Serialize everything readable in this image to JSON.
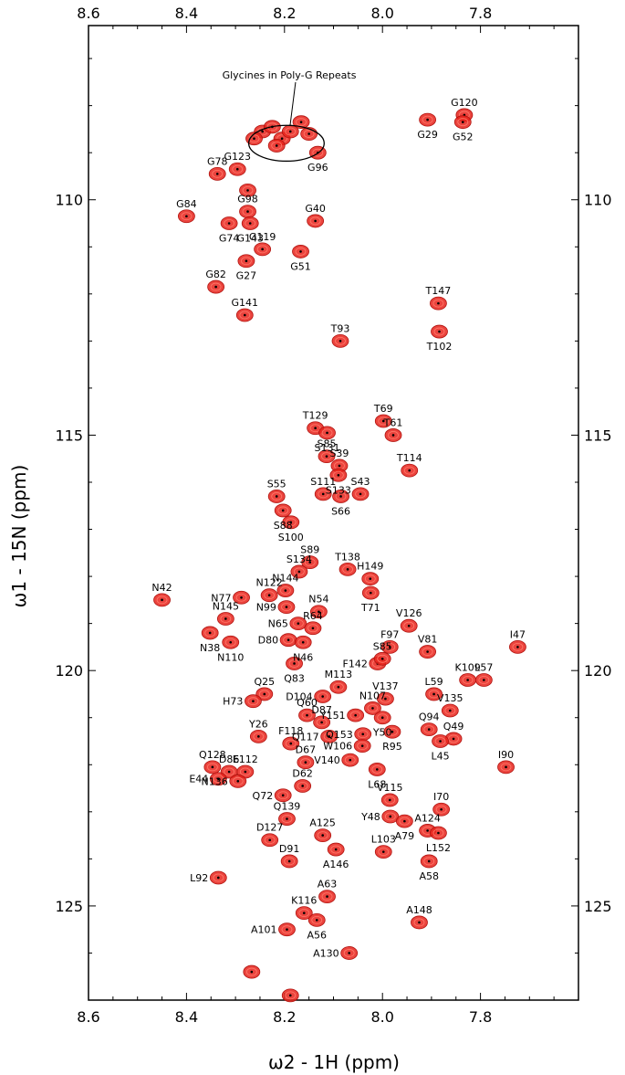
{
  "chart_data": {
    "type": "scatter",
    "xlabel": "ω2 - 1H (ppm)",
    "ylabel": "ω1 - 15N (ppm)",
    "xlim": [
      8.6,
      7.6
    ],
    "ylim": [
      106.3,
      127.0
    ],
    "x_reversed": true,
    "y_reversed": true,
    "x_ticks": [
      8.6,
      8.4,
      8.2,
      8.0,
      7.8
    ],
    "x_tick_labels": [
      "8.6",
      "8.4",
      "8.2",
      "8.0",
      "7.8"
    ],
    "y_ticks": [
      110,
      115,
      120,
      125
    ],
    "y_tick_labels": [
      "110",
      "115",
      "120",
      "125"
    ],
    "peak_color": "#e8231c",
    "annotation": {
      "text": "Glycines in Poly-G Repeats",
      "center": [
        8.196,
        108.8
      ],
      "rx": 0.077,
      "ry": 0.38
    },
    "points": [
      {
        "label": "G120",
        "x": 7.833,
        "y": 108.2
      },
      {
        "label": "G29",
        "x": 7.908,
        "y": 108.3
      },
      {
        "label": "G52",
        "x": 7.836,
        "y": 108.35
      },
      {
        "label": "G78",
        "x": 8.337,
        "y": 109.45
      },
      {
        "label": "G123",
        "x": 8.296,
        "y": 109.35
      },
      {
        "label": "G96",
        "x": 8.132,
        "y": 109.0
      },
      {
        "label": "G84",
        "x": 8.4,
        "y": 110.35
      },
      {
        "label": "G98",
        "x": 8.275,
        "y": 110.25
      },
      {
        "label": "G74",
        "x": 8.313,
        "y": 110.5
      },
      {
        "label": "G143",
        "x": 8.27,
        "y": 110.5
      },
      {
        "label": "G40",
        "x": 8.137,
        "y": 110.45
      },
      {
        "label": "G119",
        "x": 8.245,
        "y": 111.05
      },
      {
        "label": "G27",
        "x": 8.278,
        "y": 111.3
      },
      {
        "label": "G51",
        "x": 8.167,
        "y": 111.1
      },
      {
        "label": "G82",
        "x": 8.34,
        "y": 111.85
      },
      {
        "label": "G141",
        "x": 8.281,
        "y": 112.45
      },
      {
        "label": "T147",
        "x": 7.886,
        "y": 112.2
      },
      {
        "label": "T102",
        "x": 7.884,
        "y": 112.8
      },
      {
        "label": "T93",
        "x": 8.086,
        "y": 113.0
      },
      {
        "label": "T69",
        "x": 7.998,
        "y": 114.7
      },
      {
        "label": "T129",
        "x": 8.137,
        "y": 114.85
      },
      {
        "label": "S131",
        "x": 8.113,
        "y": 114.95
      },
      {
        "label": "T61",
        "x": 7.978,
        "y": 115.0
      },
      {
        "label": "S85",
        "x": 8.114,
        "y": 115.45
      },
      {
        "label": "S39",
        "x": 8.088,
        "y": 115.65
      },
      {
        "label": "S133",
        "x": 8.09,
        "y": 115.85
      },
      {
        "label": "T114",
        "x": 7.945,
        "y": 115.75
      },
      {
        "label": "S55",
        "x": 8.216,
        "y": 116.3
      },
      {
        "label": "S111",
        "x": 8.121,
        "y": 116.25
      },
      {
        "label": "S43",
        "x": 8.045,
        "y": 116.25
      },
      {
        "label": "S66",
        "x": 8.085,
        "y": 116.3
      },
      {
        "label": "S88",
        "x": 8.203,
        "y": 116.6
      },
      {
        "label": "S100",
        "x": 8.187,
        "y": 116.85
      },
      {
        "label": "S89",
        "x": 8.148,
        "y": 117.7
      },
      {
        "label": "S134",
        "x": 8.17,
        "y": 117.9
      },
      {
        "label": "T138",
        "x": 8.071,
        "y": 117.85
      },
      {
        "label": "H149",
        "x": 8.025,
        "y": 118.05
      },
      {
        "label": "T71",
        "x": 8.024,
        "y": 118.35
      },
      {
        "label": "N122",
        "x": 8.231,
        "y": 118.4
      },
      {
        "label": "N144",
        "x": 8.198,
        "y": 118.3
      },
      {
        "label": "N77",
        "x": 8.288,
        "y": 118.45
      },
      {
        "label": "N42",
        "x": 8.45,
        "y": 118.5
      },
      {
        "label": "N54",
        "x": 8.13,
        "y": 118.75
      },
      {
        "label": "N99",
        "x": 8.196,
        "y": 118.65
      },
      {
        "label": "N145",
        "x": 8.32,
        "y": 118.9
      },
      {
        "label": "N65",
        "x": 8.172,
        "y": 119.0
      },
      {
        "label": "R64",
        "x": 8.142,
        "y": 119.1
      },
      {
        "label": "N38",
        "x": 8.352,
        "y": 119.2
      },
      {
        "label": "D80",
        "x": 8.192,
        "y": 119.35
      },
      {
        "label": "N46",
        "x": 8.162,
        "y": 119.4
      },
      {
        "label": "N110",
        "x": 8.31,
        "y": 119.4
      },
      {
        "label": "V126",
        "x": 7.946,
        "y": 119.05
      },
      {
        "label": "F97",
        "x": 7.985,
        "y": 119.5
      },
      {
        "label": "V81",
        "x": 7.908,
        "y": 119.6
      },
      {
        "label": "F142",
        "x": 8.01,
        "y": 119.85
      },
      {
        "label": "S85",
        "x": 8.0,
        "y": 119.75
      },
      {
        "label": "I47",
        "x": 7.724,
        "y": 119.5
      },
      {
        "label": "Q83",
        "x": 8.18,
        "y": 119.85
      },
      {
        "label": "K109",
        "x": 7.826,
        "y": 120.2
      },
      {
        "label": "L57",
        "x": 7.793,
        "y": 120.2
      },
      {
        "label": "M113",
        "x": 8.09,
        "y": 120.35
      },
      {
        "label": "D104",
        "x": 8.122,
        "y": 120.55
      },
      {
        "label": "Q25",
        "x": 8.241,
        "y": 120.5
      },
      {
        "label": "H73",
        "x": 8.264,
        "y": 120.65
      },
      {
        "label": "V137",
        "x": 7.994,
        "y": 120.6
      },
      {
        "label": "L59",
        "x": 7.895,
        "y": 120.5
      },
      {
        "label": "N107",
        "x": 8.02,
        "y": 120.8
      },
      {
        "label": "V135",
        "x": 7.862,
        "y": 120.85
      },
      {
        "label": "Q60",
        "x": 8.154,
        "y": 120.95
      },
      {
        "label": "Y151",
        "x": 8.055,
        "y": 120.95
      },
      {
        "label": "Y50",
        "x": 8.0,
        "y": 121.0
      },
      {
        "label": "D87",
        "x": 8.124,
        "y": 121.1
      },
      {
        "label": "Q94",
        "x": 7.905,
        "y": 121.25
      },
      {
        "label": "Q153",
        "x": 8.04,
        "y": 121.35
      },
      {
        "label": "R95",
        "x": 7.98,
        "y": 121.3
      },
      {
        "label": "Q117",
        "x": 8.109,
        "y": 121.4
      },
      {
        "label": "Q49",
        "x": 7.855,
        "y": 121.45
      },
      {
        "label": "Y26",
        "x": 8.253,
        "y": 121.4
      },
      {
        "label": "F118",
        "x": 8.187,
        "y": 121.55
      },
      {
        "label": "L45",
        "x": 7.882,
        "y": 121.5
      },
      {
        "label": "W106",
        "x": 8.041,
        "y": 121.6
      },
      {
        "label": "D67",
        "x": 8.157,
        "y": 121.95
      },
      {
        "label": "V140",
        "x": 8.066,
        "y": 121.9
      },
      {
        "label": "L68",
        "x": 8.011,
        "y": 122.1
      },
      {
        "label": "I90",
        "x": 7.748,
        "y": 122.05
      },
      {
        "label": "Q128",
        "x": 8.347,
        "y": 122.05
      },
      {
        "label": "D86",
        "x": 8.313,
        "y": 122.15
      },
      {
        "label": "E112",
        "x": 8.28,
        "y": 122.15
      },
      {
        "label": "E44",
        "x": 8.335,
        "y": 122.3
      },
      {
        "label": "N136",
        "x": 8.295,
        "y": 122.35
      },
      {
        "label": "D62",
        "x": 8.163,
        "y": 122.45
      },
      {
        "label": "Q72",
        "x": 8.203,
        "y": 122.65
      },
      {
        "label": "V115",
        "x": 7.985,
        "y": 122.75
      },
      {
        "label": "I70",
        "x": 7.88,
        "y": 122.95
      },
      {
        "label": "Y48",
        "x": 7.984,
        "y": 123.1
      },
      {
        "label": "Q139",
        "x": 8.195,
        "y": 123.15
      },
      {
        "label": "A79",
        "x": 7.955,
        "y": 123.2
      },
      {
        "label": "A124",
        "x": 7.908,
        "y": 123.4
      },
      {
        "label": "L152",
        "x": 7.886,
        "y": 123.45
      },
      {
        "label": "A125",
        "x": 8.122,
        "y": 123.5
      },
      {
        "label": "D127",
        "x": 8.23,
        "y": 123.6
      },
      {
        "label": "L103",
        "x": 7.998,
        "y": 123.85
      },
      {
        "label": "A146",
        "x": 8.095,
        "y": 123.8
      },
      {
        "label": "A58",
        "x": 7.905,
        "y": 124.05
      },
      {
        "label": "D91",
        "x": 8.19,
        "y": 124.05
      },
      {
        "label": "L92",
        "x": 8.335,
        "y": 124.4
      },
      {
        "label": "A63",
        "x": 8.113,
        "y": 124.8
      },
      {
        "label": "K116",
        "x": 8.16,
        "y": 125.15
      },
      {
        "label": "A56",
        "x": 8.134,
        "y": 125.3
      },
      {
        "label": "A148",
        "x": 7.925,
        "y": 125.35
      },
      {
        "label": "A101",
        "x": 8.195,
        "y": 125.5
      },
      {
        "label": "A130",
        "x": 8.068,
        "y": 126.0
      }
    ],
    "unlabeled_points": [
      {
        "x": 8.245,
        "y": 108.55
      },
      {
        "x": 8.225,
        "y": 108.45
      },
      {
        "x": 8.205,
        "y": 108.7
      },
      {
        "x": 8.188,
        "y": 108.55
      },
      {
        "x": 8.166,
        "y": 108.35
      },
      {
        "x": 8.15,
        "y": 108.6
      },
      {
        "x": 8.262,
        "y": 108.7
      },
      {
        "x": 8.216,
        "y": 108.85
      },
      {
        "x": 8.275,
        "y": 109.8
      },
      {
        "x": 8.267,
        "y": 126.4
      },
      {
        "x": 8.188,
        "y": 126.9
      }
    ]
  }
}
